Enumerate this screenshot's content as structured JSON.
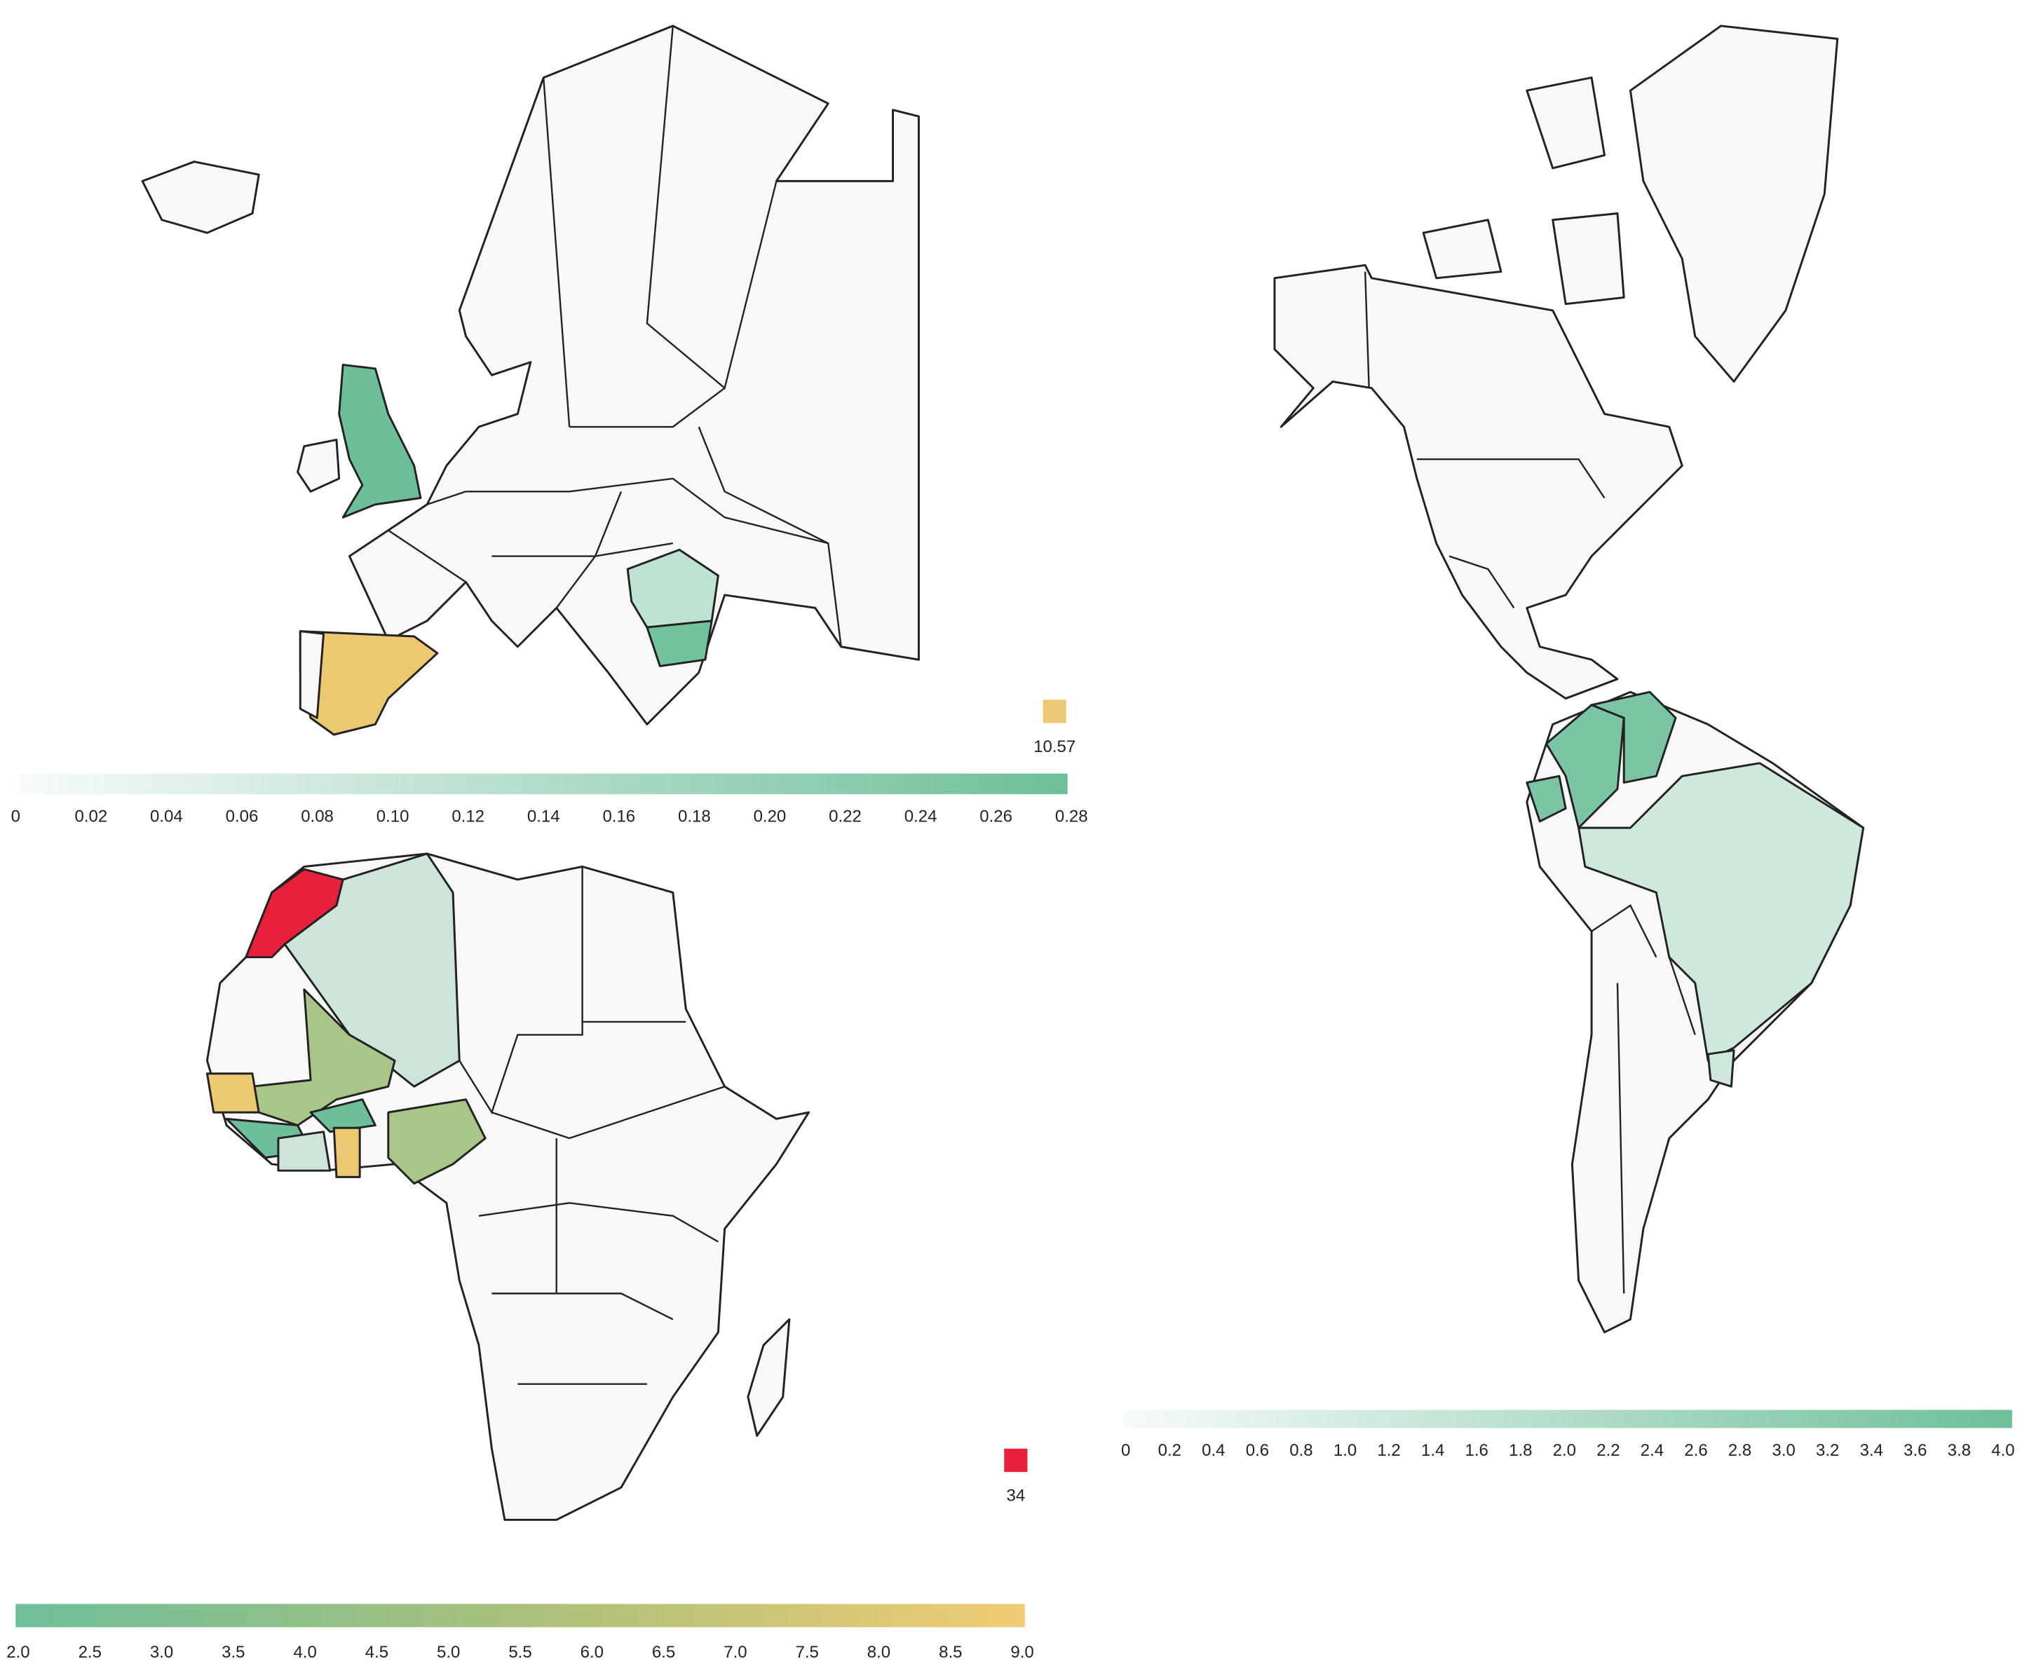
{
  "legends": [
    {
      "colors": [
        "#f7fbf9",
        "#6dbf9a"
      ],
      "ticks": [
        0,
        0.02,
        0.04,
        0.06,
        0.08,
        {
          "value": 0.1,
          "label": "0.10"
        },
        0.12,
        0.14,
        0.16,
        0.18,
        {
          "value": 0.2,
          "label": "0.20"
        },
        0.22,
        0.24,
        0.26,
        0.28
      ],
      "outlier": {
        "value": 10.57,
        "color": "#ecc870"
      }
    },
    {
      "colors": [
        "#f7fbf9",
        "#6dbf9a"
      ],
      "ticks": [
        0,
        0.2,
        0.4,
        0.6,
        0.8,
        {
          "value": 1,
          "label": "1.0"
        },
        1.2,
        1.4,
        1.6,
        1.8,
        {
          "value": 2,
          "label": "2.0"
        },
        2.2,
        2.4,
        2.6,
        2.8,
        {
          "value": 3,
          "label": "3.0"
        },
        3.2,
        3.4,
        3.6,
        3.8,
        {
          "value": 4,
          "label": "4.0"
        }
      ]
    },
    {
      "colors": [
        "#6dbf9a",
        "#a9c07a",
        "#f0cc73"
      ],
      "ticks": [
        {
          "value": 2,
          "label": "2.0"
        },
        2.5,
        {
          "value": 3,
          "label": "3.0"
        },
        3.5,
        {
          "value": 4,
          "label": "4.0"
        },
        4.5,
        {
          "value": 5,
          "label": "5.0"
        },
        5.5,
        {
          "value": 6,
          "label": "6.0"
        },
        6.5,
        {
          "value": 7,
          "label": "7.0"
        },
        7.5,
        {
          "value": 8,
          "label": "8.0"
        },
        8.5,
        {
          "value": 9,
          "label": "9.0"
        }
      ],
      "outlier": {
        "value": 34,
        "color": "#e8203a"
      }
    }
  ]
}
